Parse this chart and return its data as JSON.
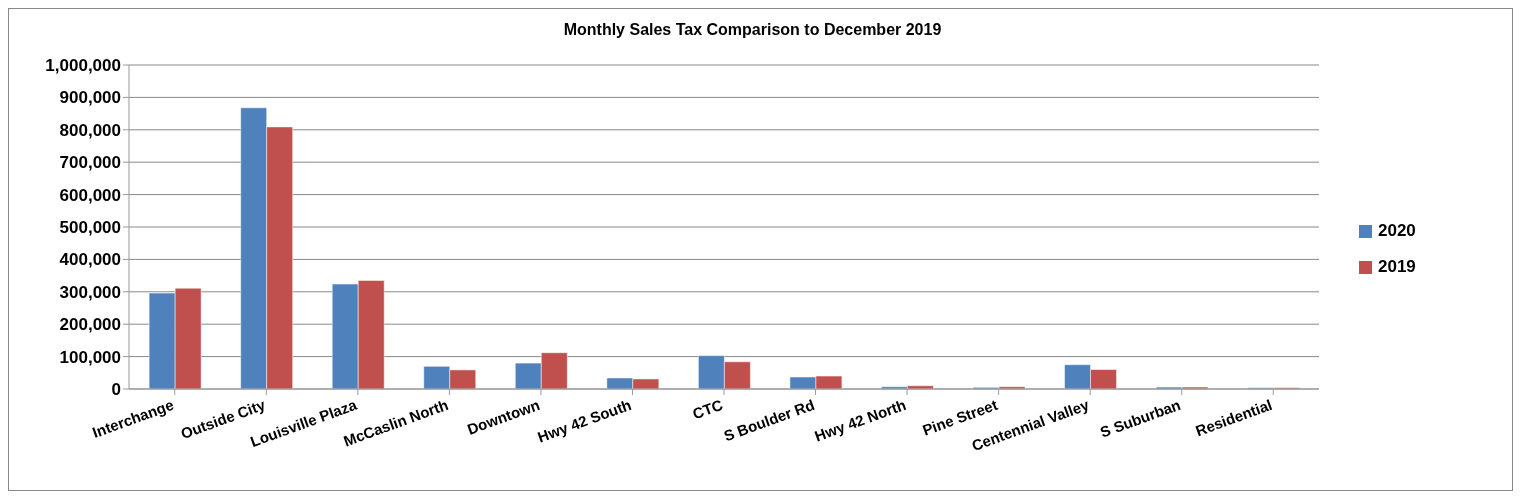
{
  "chart_data": {
    "type": "bar",
    "title": "Monthly Sales Tax Comparison to  December 2019",
    "categories": [
      "Interchange",
      "Outside City",
      "Louisville Plaza",
      "McCaslin North",
      "Downtown",
      "Hwy 42 South",
      "CTC",
      "S Boulder Rd",
      "Hwy 42 North",
      "Pine Street",
      "Centennial Valley",
      "S Suburban",
      "Residential"
    ],
    "series": [
      {
        "name": "2020",
        "color": "#4f81bd",
        "values": [
          296000,
          868000,
          324000,
          70000,
          80000,
          34000,
          103000,
          37000,
          7000,
          5000,
          75000,
          6000,
          4000
        ]
      },
      {
        "name": "2019",
        "color": "#c0504d",
        "values": [
          311000,
          809000,
          335000,
          59000,
          112000,
          31000,
          84000,
          40000,
          10000,
          7000,
          60000,
          6000,
          4000
        ]
      }
    ],
    "ylim": [
      0,
      1000000
    ],
    "yticks": [
      0,
      {
        "value": 100000,
        "label": "100,000"
      },
      {
        "value": 200000,
        "label": "200,000"
      },
      {
        "value": 300000,
        "label": "300,000"
      },
      {
        "value": 400000,
        "label": "400,000"
      },
      {
        "value": 500000,
        "label": "500,000"
      },
      {
        "value": 600000,
        "label": "600,000"
      },
      {
        "value": 700000,
        "label": "700,000"
      },
      {
        "value": 800000,
        "label": "800,000"
      },
      {
        "value": 900000,
        "label": "900,000"
      },
      {
        "value": 1000000,
        "label": "1,000,000"
      }
    ],
    "grid": "y",
    "legend": "right"
  }
}
